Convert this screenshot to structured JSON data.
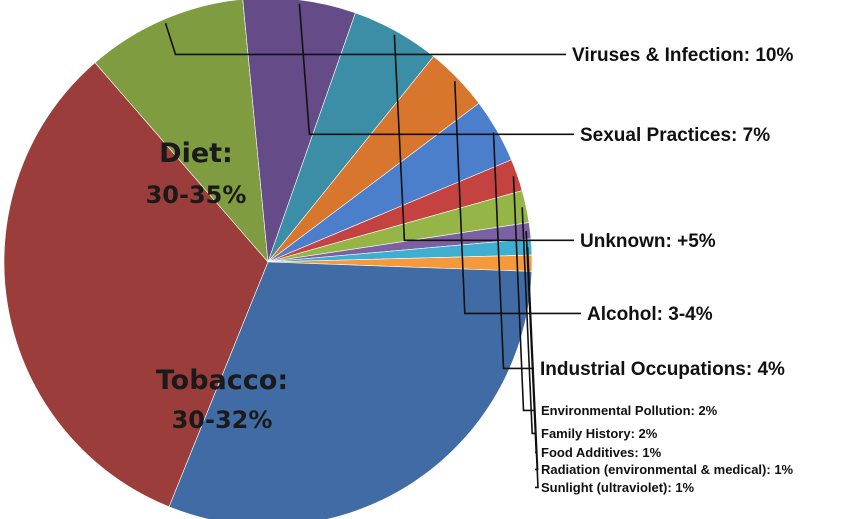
{
  "chart_data": {
    "type": "pie",
    "title": "",
    "slices": [
      {
        "name": "Diet",
        "range_text": "30-35%",
        "value": 33,
        "color": "#9B3D3A"
      },
      {
        "name": "Viruses & Infection",
        "label": "Viruses & Infection: 10%",
        "value": 10,
        "color": "#7F9C41"
      },
      {
        "name": "Sexual Practices",
        "label": "Sexual Practices: 7%",
        "value": 7,
        "color": "#654B88"
      },
      {
        "name": "Unknown",
        "label": "Unknown: +5%",
        "value": 5.5,
        "color": "#3B8EA5"
      },
      {
        "name": "Alcohol",
        "label": "Alcohol: 3-4%",
        "value": 4,
        "color": "#D8762E"
      },
      {
        "name": "Industrial Occupations",
        "label": "Industrial Occupations: 4%",
        "value": 4,
        "color": "#4C7FCB"
      },
      {
        "name": "Environmental Pollution",
        "label": "Environmental Pollution: 2%",
        "value": 2,
        "color": "#C4423F"
      },
      {
        "name": "Family History",
        "label": "Family History: 2%",
        "value": 2,
        "color": "#95B547"
      },
      {
        "name": "Food Additives",
        "label": "Food Additives: 1%",
        "value": 1,
        "color": "#7B60A3"
      },
      {
        "name": "Radiation (environmental & medical)",
        "label": "Radiation (environmental & medical): 1%",
        "value": 1,
        "color": "#3FAFD1"
      },
      {
        "name": "Sunlight (ultraviolet)",
        "label": "Sunlight (ultraviolet): 1%",
        "value": 1,
        "color": "#F49A3C"
      },
      {
        "name": "Tobacco",
        "range_text": "30-32%",
        "value": 31,
        "color": "#416BA5"
      }
    ],
    "inside_labels": {
      "diet_name": "Diet:",
      "diet_range": "30-35%",
      "tobacco_name": "Tobacco:",
      "tobacco_range": "30-32%"
    },
    "start_angle_deg": 202,
    "direction": "clockwise",
    "legend": "none"
  }
}
